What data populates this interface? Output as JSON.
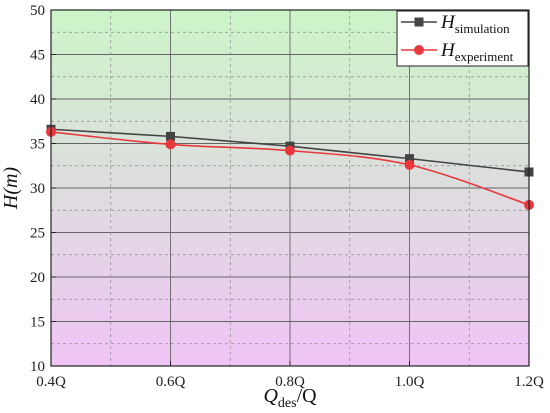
{
  "chart_data": {
    "type": "line",
    "x": [
      "0.4Q",
      "0.6Q",
      "0.8Q",
      "1.0Q",
      "1.2Q"
    ],
    "xlim": [
      "0.4Q",
      "1.2Q"
    ],
    "ylim": [
      10,
      50
    ],
    "yticks": [
      10,
      15,
      20,
      25,
      30,
      35,
      40,
      45,
      50
    ],
    "xlabel": {
      "main": "Q",
      "sub": "des",
      "tail": "/Q"
    },
    "ylabel": "H(m)",
    "grid": true,
    "legend_position": "top-right",
    "background_gradient": {
      "top": "#ccf5c8",
      "bottom": "#f0c4f5"
    },
    "series": [
      {
        "name_main": "H",
        "name_sub": "simulation",
        "marker": "square",
        "color": "#444444",
        "values": [
          36.6,
          35.8,
          34.7,
          33.3,
          31.8
        ]
      },
      {
        "name_main": "H",
        "name_sub": "experiment",
        "marker": "circle",
        "color": "#e8383d",
        "values": [
          36.3,
          34.9,
          34.2,
          32.6,
          28.1
        ]
      }
    ]
  }
}
